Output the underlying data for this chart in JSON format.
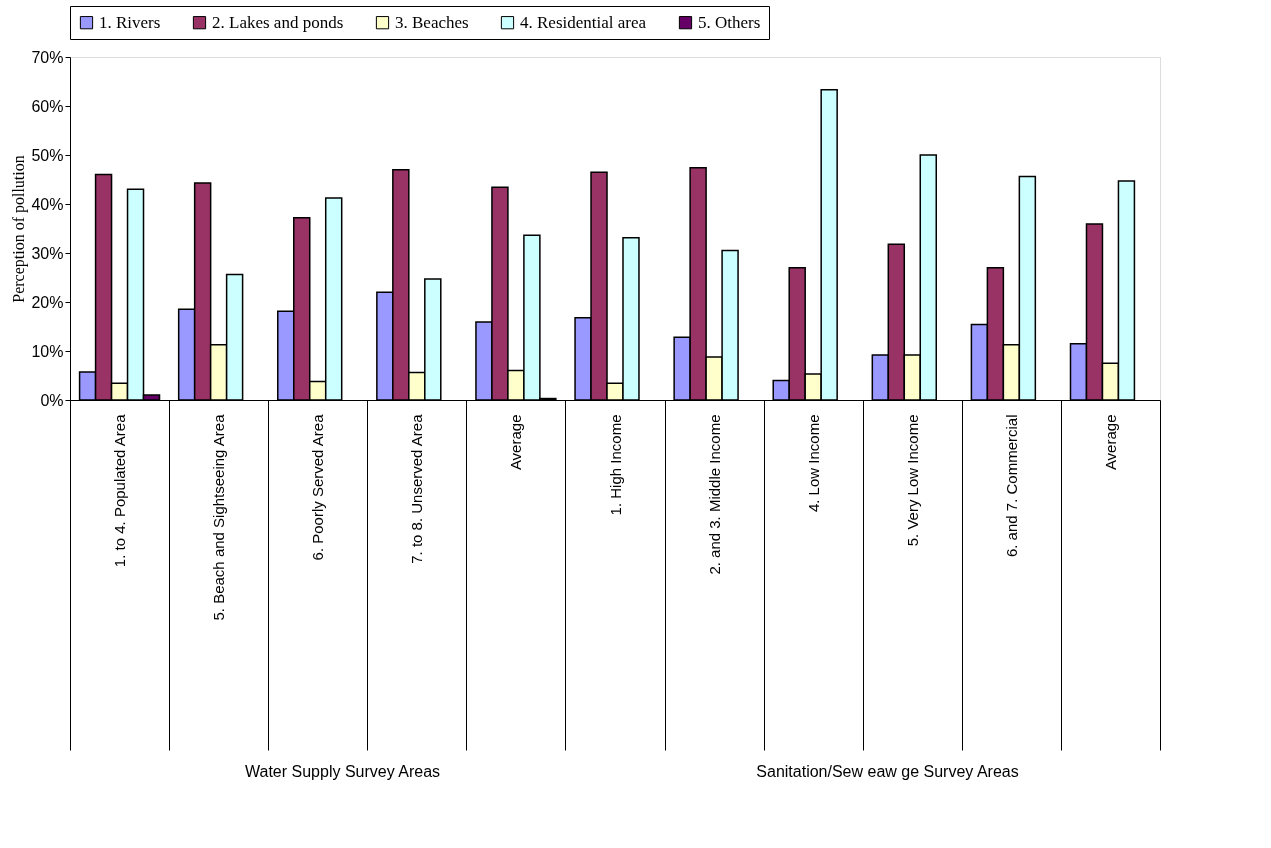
{
  "chart_data": {
    "type": "bar",
    "categories": [
      "1. to 4. Populated Area",
      "5. Beach and Sightseeing Area",
      "6. Poorly Served Area",
      "7. to 8. Unserved Area",
      "Average",
      "1. High Income",
      "2. and 3.  Middle Income",
      "4. Low Income",
      "5.  Very Low Income",
      "6. and 7. Commercial",
      "Average"
    ],
    "series": [
      {
        "name": "1. Rivers",
        "color": "#9999ff",
        "values": [
          5.7,
          18.5,
          18.1,
          22.0,
          15.9,
          16.8,
          12.8,
          4.0,
          9.2,
          15.4,
          11.5
        ]
      },
      {
        "name": "2. Lakes and ponds",
        "color": "#993366",
        "values": [
          46.0,
          44.3,
          37.2,
          47.0,
          43.4,
          46.5,
          47.4,
          27.0,
          31.8,
          27.0,
          35.9
        ]
      },
      {
        "name": "3. Beaches",
        "color": "#ffffcc",
        "values": [
          3.4,
          11.3,
          3.8,
          5.6,
          6.0,
          3.4,
          8.8,
          5.3,
          9.2,
          11.3,
          7.5
        ]
      },
      {
        "name": "4. Residential area",
        "color": "#ccffff",
        "values": [
          43.0,
          25.6,
          41.2,
          24.7,
          33.6,
          33.1,
          30.5,
          63.3,
          50.0,
          45.6,
          44.7
        ]
      },
      {
        "name": "5. Others",
        "color": "#660066",
        "values": [
          1.0,
          null,
          null,
          null,
          0.3,
          null,
          null,
          null,
          null,
          null,
          null
        ]
      }
    ],
    "ylabel": "Perception of pollution",
    "ylim": [
      0,
      70
    ],
    "yticks": [
      {
        "value": 0,
        "label": "0%"
      },
      {
        "value": 10,
        "label": "10%"
      },
      {
        "value": 20,
        "label": "20%"
      },
      {
        "value": 30,
        "label": "30%"
      },
      {
        "value": 40,
        "label": "40%"
      },
      {
        "value": 50,
        "label": "50%"
      },
      {
        "value": 60,
        "label": "60%"
      },
      {
        "value": 70,
        "label": "70%"
      }
    ],
    "annotations": [
      "Water Supply Survey Areas",
      "Sanitation/Sew eaw ge Survey Areas"
    ],
    "legend": "top",
    "grid": false
  }
}
